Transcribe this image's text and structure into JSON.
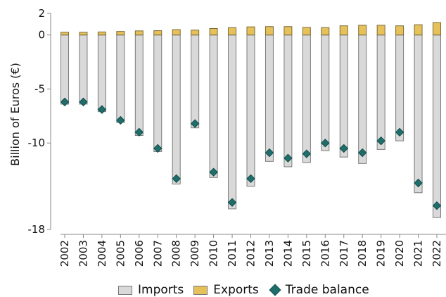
{
  "chart_data": {
    "type": "bar",
    "title": "",
    "xlabel": "",
    "ylabel": "Billion of Euros (€)",
    "ylim": [
      -18,
      2
    ],
    "yticks": [
      2,
      0,
      -5,
      -10,
      -18
    ],
    "grid": false,
    "legend_position": "bottom",
    "categories": [
      "2002",
      "2003",
      "2004",
      "2005",
      "2006",
      "2007",
      "2008",
      "2009",
      "2010",
      "2011",
      "2012",
      "2013",
      "2014",
      "2015",
      "2016",
      "2017",
      "2018",
      "2019",
      "2020",
      "2021",
      "2022"
    ],
    "series": [
      {
        "name": "Imports",
        "kind": "bar",
        "color": "#d9d9d9",
        "values": [
          -6.4,
          -6.4,
          -7.1,
          -8.1,
          -9.3,
          -10.8,
          -13.8,
          -8.6,
          -13.2,
          -16.1,
          -14.0,
          -11.7,
          -12.2,
          -11.8,
          -10.7,
          -11.3,
          -11.9,
          -10.6,
          -9.8,
          -14.6,
          -16.9
        ]
      },
      {
        "name": "Exports",
        "kind": "bar",
        "color": "#e6c15a",
        "values": [
          0.25,
          0.25,
          0.28,
          0.33,
          0.38,
          0.4,
          0.5,
          0.45,
          0.6,
          0.68,
          0.75,
          0.78,
          0.78,
          0.7,
          0.68,
          0.85,
          0.9,
          0.9,
          0.85,
          0.95,
          1.15
        ]
      },
      {
        "name": "Trade balance",
        "kind": "marker",
        "color": "#1f6e6b",
        "values": [
          -6.2,
          -6.2,
          -6.9,
          -7.9,
          -9.0,
          -10.5,
          -13.3,
          -8.2,
          -12.7,
          -15.5,
          -13.3,
          -10.9,
          -11.4,
          -11.0,
          -10.0,
          -10.5,
          -10.9,
          -9.8,
          -9.0,
          -13.7,
          -15.8
        ]
      }
    ]
  },
  "legend": {
    "imports": "Imports",
    "exports": "Exports",
    "balance": "Trade balance"
  }
}
